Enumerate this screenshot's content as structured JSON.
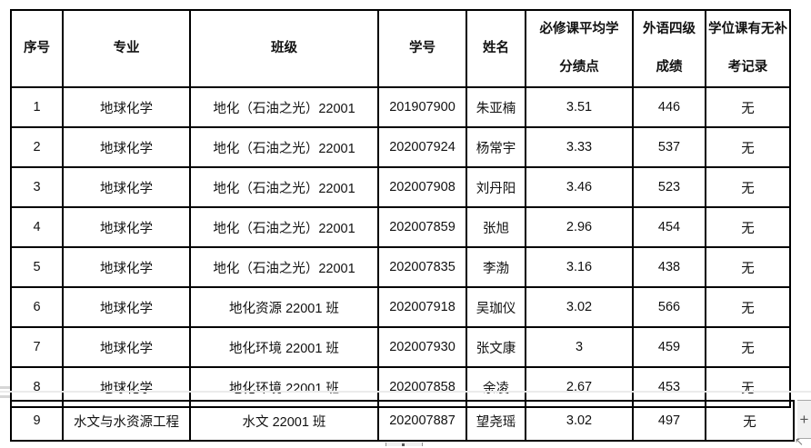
{
  "table": {
    "headers": [
      {
        "key": "serial",
        "lines": [
          "序号"
        ]
      },
      {
        "key": "major",
        "lines": [
          "专业"
        ]
      },
      {
        "key": "class",
        "lines": [
          "班级"
        ]
      },
      {
        "key": "student-id",
        "lines": [
          "学号"
        ]
      },
      {
        "key": "name",
        "lines": [
          "姓名"
        ]
      },
      {
        "key": "gpa",
        "lines": [
          "必修课平均学",
          "分绩点"
        ]
      },
      {
        "key": "cet4",
        "lines": [
          "外语四级",
          "成绩"
        ]
      },
      {
        "key": "makeup",
        "lines": [
          "学位课有无补",
          "考记录"
        ]
      }
    ],
    "rows_page1": [
      [
        "1",
        "地球化学",
        "地化（石油之光）22001",
        "201907900",
        "朱亚楠",
        "3.51",
        "446",
        "无"
      ],
      [
        "2",
        "地球化学",
        "地化（石油之光）22001",
        "202007924",
        "杨常宇",
        "3.33",
        "537",
        "无"
      ],
      [
        "3",
        "地球化学",
        "地化（石油之光）22001",
        "202007908",
        "刘丹阳",
        "3.46",
        "523",
        "无"
      ],
      [
        "4",
        "地球化学",
        "地化（石油之光）22001",
        "202007859",
        "张旭",
        "2.96",
        "454",
        "无"
      ],
      [
        "5",
        "地球化学",
        "地化（石油之光）22001",
        "202007835",
        "李渤",
        "3.16",
        "438",
        "无"
      ],
      [
        "6",
        "地球化学",
        "地化资源 22001 班",
        "202007918",
        "吴珈仪",
        "3.02",
        "566",
        "无"
      ],
      [
        "7",
        "地球化学",
        "地化环境 22001 班",
        "202007930",
        "张文康",
        "3",
        "459",
        "无"
      ],
      [
        "8",
        "地球化学",
        "地化环境 22001 班",
        "202007858",
        "余凌",
        "2.67",
        "453",
        "无"
      ]
    ],
    "rows_page2": [
      [
        "9",
        "水文与水资源工程",
        "水文 22001 班",
        "202007887",
        "望尧瑶",
        "3.02",
        "497",
        "无"
      ]
    ]
  },
  "widgets": {
    "plus_glyph": "+",
    "arrow_glyph": "↖"
  },
  "colors": {
    "border": "#000000",
    "text": "#111111",
    "scrollbar_bg": "#f1f1f1"
  }
}
